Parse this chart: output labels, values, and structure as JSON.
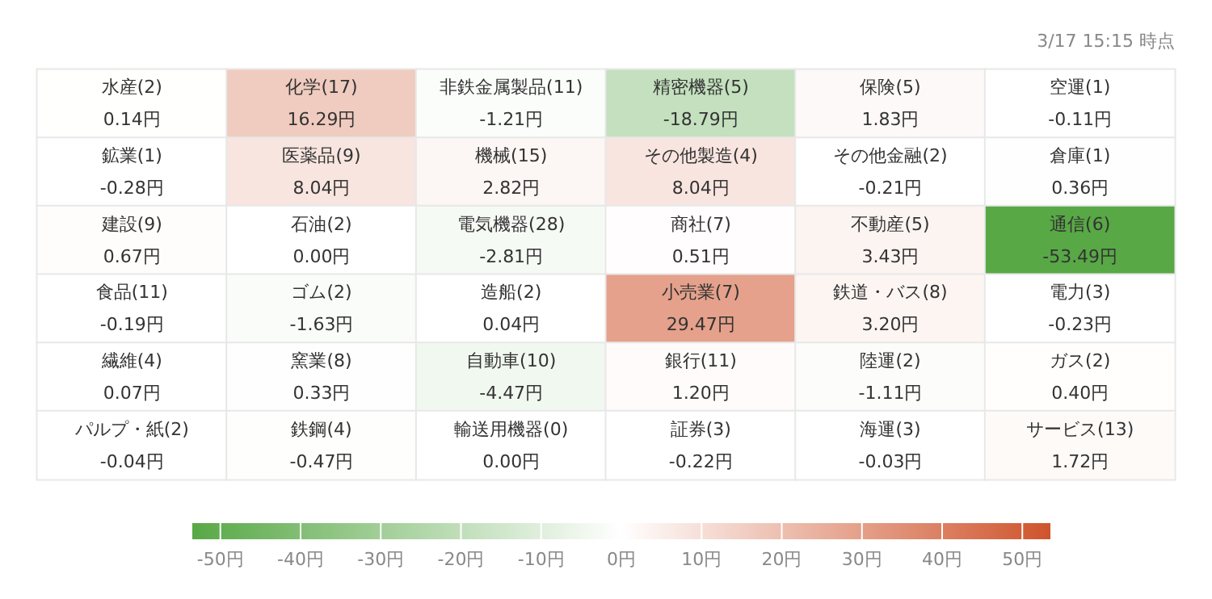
{
  "chart_data": {
    "type": "heatmap",
    "annotations": [
      "3/17 15:15 時点"
    ],
    "categories": [
      null,
      null,
      null,
      null,
      null,
      null
    ],
    "y_categories": [
      null,
      null,
      null,
      null,
      null,
      null
    ],
    "cells": [
      [
        0.14,
        16.29,
        -1.21,
        -18.79,
        1.83,
        -0.11
      ],
      [
        -0.28,
        8.04,
        2.82,
        8.04,
        -0.21,
        0.36
      ],
      [
        0.67,
        0.0,
        -2.81,
        0.51,
        3.43,
        -53.49
      ],
      [
        -0.19,
        -1.63,
        0.04,
        29.47,
        3.2,
        -0.23
      ],
      [
        0.07,
        0.33,
        -4.47,
        1.2,
        -1.11,
        0.4
      ],
      [
        -0.04,
        -0.47,
        0.0,
        -0.22,
        -0.03,
        1.72
      ]
    ],
    "cell_labels": [
      [
        "水産(2)\n0.14円",
        "化学(17)\n16.29円",
        "非鉄金属製品(11)\n-1.21円",
        "精密機器(5)\n-18.79円",
        "保険(5)\n1.83円",
        "空運(1)\n-0.11円"
      ],
      [
        "鉱業(1)\n-0.28円",
        "医薬品(9)\n8.04円",
        "機械(15)\n2.82円",
        "その他製造(4)\n8.04円",
        "その他金融(2)\n-0.21円",
        "倉庫(1)\n0.36円"
      ],
      [
        "建設(9)\n0.67円",
        "石油(2)\n0.00円",
        "電気機器(28)\n-2.81円",
        "商社(7)\n0.51円",
        "不動産(5)\n3.43円",
        "通信(6)\n-53.49円"
      ],
      [
        "食品(11)\n-0.19円",
        "ゴム(2)\n-1.63円",
        "造船(2)\n0.04円",
        "小売業(7)\n29.47円",
        "鉄道・バス(8)\n3.20円",
        "電力(3)\n-0.23円"
      ],
      [
        "繊維(4)\n0.07円",
        "窯業(8)\n0.33円",
        "自動車(10)\n-4.47円",
        "銀行(11)\n1.20円",
        "陸運(2)\n-1.11円",
        "ガス(2)\n0.40円"
      ],
      [
        "パルプ・紙(2)\n-0.04円",
        "鉄鋼(4)\n-0.47円",
        "輸送用機器(0)\n0.00円",
        "証券(3)\n-0.22円",
        "海運(3)\n-0.03円",
        "サービス(13)\n1.72円"
      ]
    ],
    "clim": [
      -53.5,
      53.5
    ],
    "cticks": [
      {
        "value": -50,
        "label": "-50円"
      },
      {
        "value": -40,
        "label": "-40円"
      },
      {
        "value": -30,
        "label": "-30円"
      },
      {
        "value": -20,
        "label": "-20円"
      },
      {
        "value": -10,
        "label": "-10円"
      },
      {
        "value": 0,
        "label": "0円"
      },
      {
        "value": 10,
        "label": "10円"
      },
      {
        "value": 20,
        "label": "20円"
      },
      {
        "value": 30,
        "label": "30円"
      },
      {
        "value": 40,
        "label": "40円"
      },
      {
        "value": 50,
        "label": "50円"
      }
    ]
  }
}
